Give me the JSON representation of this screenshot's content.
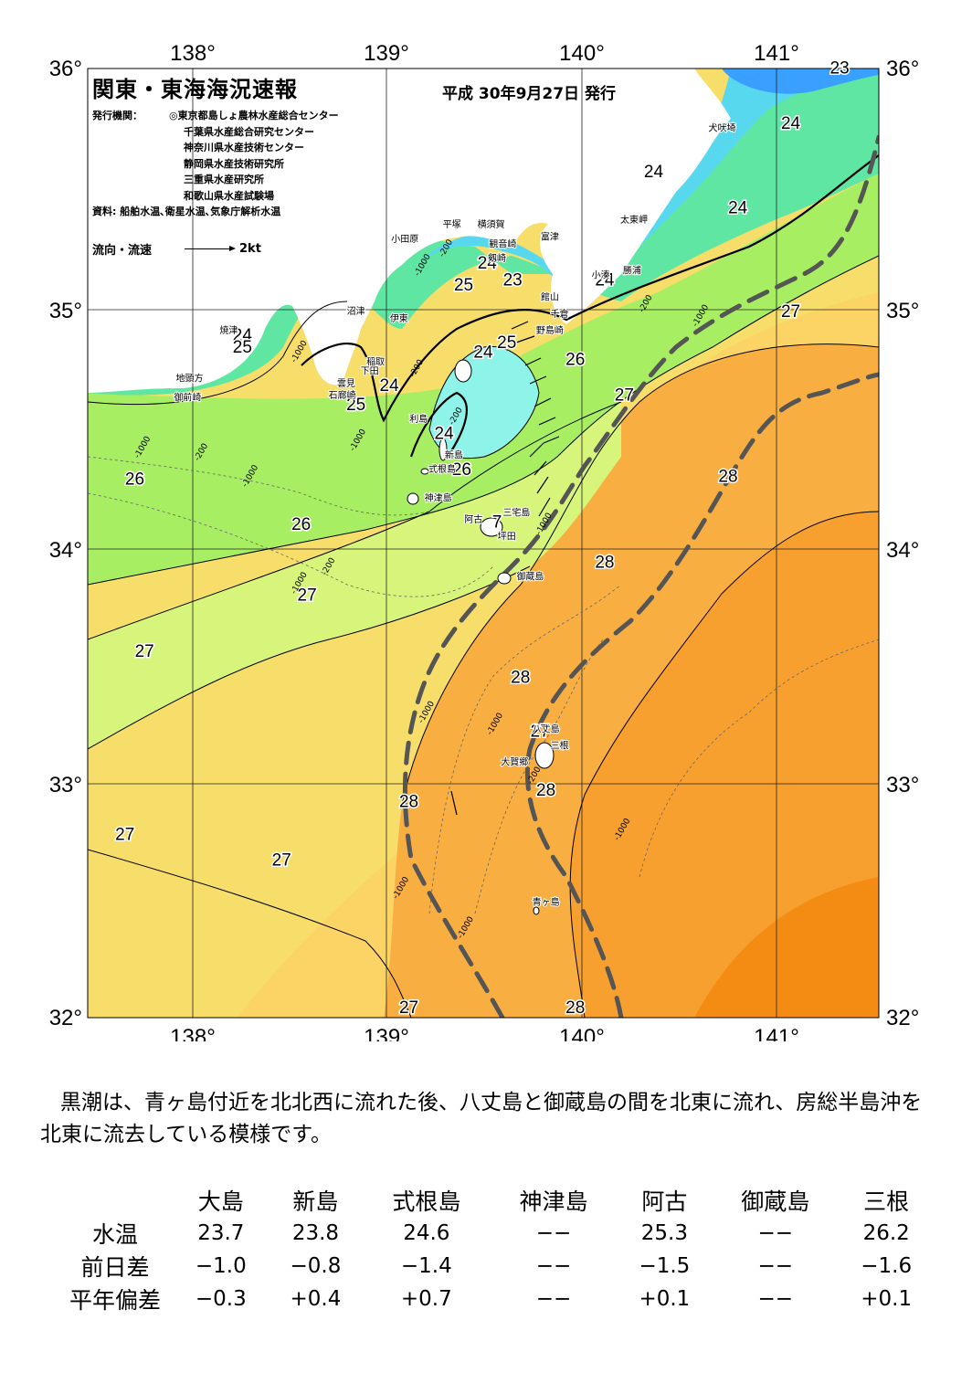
{
  "header": {
    "title": "関東・東海海況速報",
    "issue_date": "平成 30年9月27日 発行",
    "publishers_label": "発行機関：",
    "publishers": [
      "◎東京都島しょ農林水産総合センター",
      "千葉県水産総合研究センター",
      "神奈川県水産技術センター",
      "静岡県水産技術研究所",
      "三重県水産研究所",
      "和歌山県水産試験場"
    ],
    "sources": "資料: 船舶水温､衛星水温､気象庁解析水温",
    "flow_legend_label": "流向・流速",
    "flow_legend_scale": "2kt"
  },
  "map": {
    "lon_labels": [
      "138°",
      "139°",
      "140°",
      "141°"
    ],
    "lat_labels": [
      "36°",
      "35°",
      "34°",
      "33°",
      "32°"
    ],
    "colors": {
      "t23": "#3aa0ff",
      "t24": "#58d8ee",
      "t24b": "#8ef4ea",
      "t25": "#5fe6a3",
      "t25b": "#4fd878",
      "t26": "#a8ee62",
      "t26b": "#d7f57a",
      "t27": "#f7dd6a",
      "t27b": "#fcd466",
      "t28": "#f9ae42",
      "t28b": "#f7a030",
      "t29": "#f48c14",
      "land": "#ffffff",
      "kuroshio": "#555555"
    },
    "isotherm_labels": [
      {
        "text": "23",
        "lon": 141.3,
        "lat": 35.98
      },
      {
        "text": "24",
        "lon": 141.05,
        "lat": 35.75
      },
      {
        "text": "24",
        "lon": 140.35,
        "lat": 35.55
      },
      {
        "text": "24",
        "lon": 140.78,
        "lat": 35.4
      },
      {
        "text": "24",
        "lon": 140.1,
        "lat": 35.1
      },
      {
        "text": "27",
        "lon": 141.05,
        "lat": 34.97
      },
      {
        "text": "24",
        "lon": 138.25,
        "lat": 34.87
      },
      {
        "text": "25",
        "lon": 138.25,
        "lat": 34.82
      },
      {
        "text": "24",
        "lon": 139.5,
        "lat": 35.17
      },
      {
        "text": "25",
        "lon": 139.38,
        "lat": 35.08
      },
      {
        "text": "23",
        "lon": 139.63,
        "lat": 35.1
      },
      {
        "text": "24",
        "lon": 139.48,
        "lat": 34.8
      },
      {
        "text": "25",
        "lon": 139.6,
        "lat": 34.84
      },
      {
        "text": "26",
        "lon": 139.95,
        "lat": 34.77
      },
      {
        "text": "24",
        "lon": 139.0,
        "lat": 34.66
      },
      {
        "text": "25",
        "lon": 138.83,
        "lat": 34.58
      },
      {
        "text": "27",
        "lon": 140.2,
        "lat": 34.62
      },
      {
        "text": "24",
        "lon": 139.28,
        "lat": 34.46
      },
      {
        "text": "26",
        "lon": 139.37,
        "lat": 34.31
      },
      {
        "text": "26",
        "lon": 137.7,
        "lat": 34.27
      },
      {
        "text": "28",
        "lon": 140.73,
        "lat": 34.28
      },
      {
        "text": "26",
        "lon": 138.55,
        "lat": 34.08
      },
      {
        "text": "7",
        "lon": 139.55,
        "lat": 34.09
      },
      {
        "text": "28",
        "lon": 140.1,
        "lat": 33.92
      },
      {
        "text": "27",
        "lon": 138.58,
        "lat": 33.78
      },
      {
        "text": "27",
        "lon": 137.75,
        "lat": 33.54
      },
      {
        "text": "28",
        "lon": 139.67,
        "lat": 33.43
      },
      {
        "text": "27",
        "lon": 139.77,
        "lat": 33.2
      },
      {
        "text": "28",
        "lon": 139.1,
        "lat": 32.9
      },
      {
        "text": "28",
        "lon": 139.8,
        "lat": 32.95
      },
      {
        "text": "27",
        "lon": 137.65,
        "lat": 32.76
      },
      {
        "text": "27",
        "lon": 138.45,
        "lat": 32.65
      },
      {
        "text": "27",
        "lon": 139.1,
        "lat": 32.02
      },
      {
        "text": "28",
        "lon": 139.95,
        "lat": 32.02
      }
    ],
    "place_labels": [
      {
        "text": "犬吠埼",
        "lon": 140.7,
        "lat": 35.74
      },
      {
        "text": "太東岬",
        "lon": 140.25,
        "lat": 35.36
      },
      {
        "text": "勝浦",
        "lon": 140.24,
        "lat": 35.15
      },
      {
        "text": "小湊",
        "lon": 140.08,
        "lat": 35.13
      },
      {
        "text": "富津",
        "lon": 139.82,
        "lat": 35.29
      },
      {
        "text": "横須賀",
        "lon": 139.52,
        "lat": 35.34
      },
      {
        "text": "平塚",
        "lon": 139.32,
        "lat": 35.34
      },
      {
        "text": "観音崎",
        "lon": 139.58,
        "lat": 35.26
      },
      {
        "text": "小田原",
        "lon": 139.08,
        "lat": 35.28
      },
      {
        "text": "剱崎",
        "lon": 139.55,
        "lat": 35.2
      },
      {
        "text": "館山",
        "lon": 139.82,
        "lat": 35.04
      },
      {
        "text": "千倉",
        "lon": 139.87,
        "lat": 34.97
      },
      {
        "text": "沼津",
        "lon": 138.83,
        "lat": 34.98
      },
      {
        "text": "伊東",
        "lon": 139.05,
        "lat": 34.95
      },
      {
        "text": "野島崎",
        "lon": 139.82,
        "lat": 34.9
      },
      {
        "text": "焼津",
        "lon": 138.18,
        "lat": 34.9
      },
      {
        "text": "稲取",
        "lon": 138.93,
        "lat": 34.77
      },
      {
        "text": "下田",
        "lon": 138.9,
        "lat": 34.73
      },
      {
        "text": "雲見",
        "lon": 138.78,
        "lat": 34.68
      },
      {
        "text": "地頭方",
        "lon": 137.98,
        "lat": 34.7
      },
      {
        "text": "石廊崎",
        "lon": 138.76,
        "lat": 34.63
      },
      {
        "text": "御前崎",
        "lon": 137.97,
        "lat": 34.62
      },
      {
        "text": "利島",
        "lon": 139.15,
        "lat": 34.53
      },
      {
        "text": "新島",
        "lon": 139.33,
        "lat": 34.38
      },
      {
        "text": "式根島",
        "lon": 139.27,
        "lat": 34.32
      },
      {
        "text": "神津島",
        "lon": 139.25,
        "lat": 34.2
      },
      {
        "text": "阿古",
        "lon": 139.43,
        "lat": 34.11
      },
      {
        "text": "三宅島",
        "lon": 139.65,
        "lat": 34.14
      },
      {
        "text": "坪田",
        "lon": 139.6,
        "lat": 34.04
      },
      {
        "text": "御蔵島",
        "lon": 139.72,
        "lat": 33.87
      },
      {
        "text": "八丈島",
        "lon": 139.8,
        "lat": 33.22
      },
      {
        "text": "三根",
        "lon": 139.87,
        "lat": 33.15
      },
      {
        "text": "大賀郷",
        "lon": 139.64,
        "lat": 33.08
      },
      {
        "text": "青ヶ島",
        "lon": 139.8,
        "lat": 32.48
      }
    ],
    "depth_labels": [
      {
        "text": "-200",
        "lon": 139.3,
        "lat": 35.25
      },
      {
        "text": "-1000",
        "lon": 139.18,
        "lat": 35.18
      },
      {
        "text": "-1000",
        "lon": 140.6,
        "lat": 34.97
      },
      {
        "text": "-200",
        "lon": 140.32,
        "lat": 35.02
      },
      {
        "text": "-1000",
        "lon": 138.55,
        "lat": 34.82
      },
      {
        "text": "-1000",
        "lon": 138.85,
        "lat": 34.45
      },
      {
        "text": "-200",
        "lon": 139.35,
        "lat": 34.55
      },
      {
        "text": "-200",
        "lon": 139.15,
        "lat": 34.75
      },
      {
        "text": "-1000",
        "lon": 137.75,
        "lat": 34.42
      },
      {
        "text": "-200",
        "lon": 138.05,
        "lat": 34.4
      },
      {
        "text": "-1000",
        "lon": 138.3,
        "lat": 34.3
      },
      {
        "text": "-200",
        "lon": 138.7,
        "lat": 33.92
      },
      {
        "text": "-1000",
        "lon": 138.55,
        "lat": 33.85
      },
      {
        "text": "-1000",
        "lon": 139.8,
        "lat": 34.1
      },
      {
        "text": "-1000",
        "lon": 139.2,
        "lat": 33.3
      },
      {
        "text": "-1000",
        "lon": 139.55,
        "lat": 33.25
      },
      {
        "text": "-200",
        "lon": 139.75,
        "lat": 33.03
      },
      {
        "text": "-1000",
        "lon": 140.2,
        "lat": 32.8
      },
      {
        "text": "-1000",
        "lon": 139.07,
        "lat": 32.55
      },
      {
        "text": "-1000",
        "lon": 139.4,
        "lat": 32.38
      }
    ]
  },
  "summary": "黒潮は、青ヶ島付近を北北西に流れた後、八丈島と御蔵島の間を北東に流れ、房総半島沖を北東に流去している模様です。",
  "stats": {
    "columns": [
      "大島",
      "新島",
      "式根島",
      "神津島",
      "阿古",
      "御蔵島",
      "三根"
    ],
    "rows": [
      {
        "label": "水温",
        "values": [
          "23.7",
          "23.8",
          "24.6",
          "−−",
          "25.3",
          "−−",
          "26.2"
        ]
      },
      {
        "label": "前日差",
        "values": [
          "−1.0",
          "−0.8",
          "−1.4",
          "−−",
          "−1.5",
          "−−",
          "−1.6"
        ]
      },
      {
        "label": "平年偏差",
        "values": [
          "−0.3",
          "+0.4",
          "+0.7",
          "−−",
          "+0.1",
          "−−",
          "+0.1"
        ]
      }
    ]
  }
}
